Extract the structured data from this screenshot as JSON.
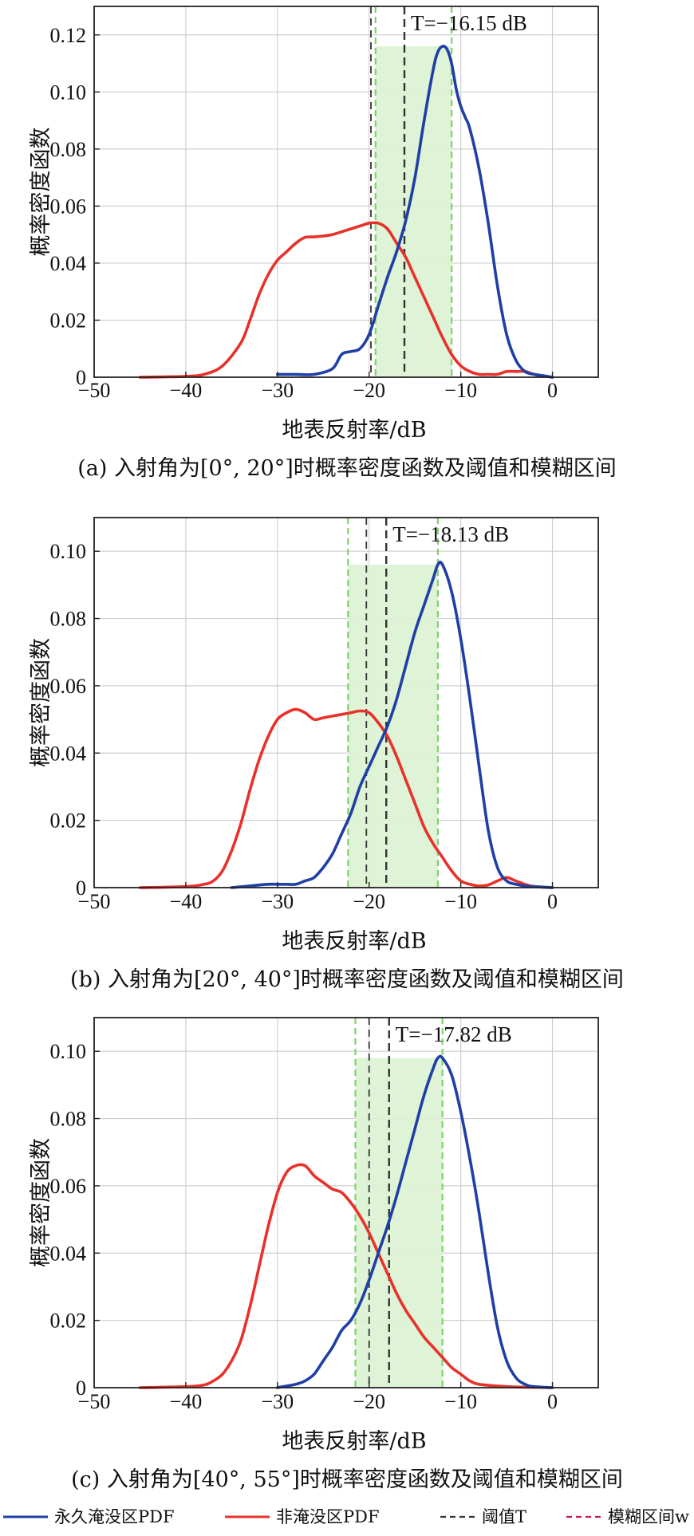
{
  "colors": {
    "permanent": "#1f3fa6",
    "nonflood": "#e8312a",
    "threshold": "#333333",
    "fuzzy_edge": "#7ed36c",
    "fuzzy_fill": "#dcf2d3",
    "grid": "#cfcfcf",
    "fuzzy_interval_legend": "#c2185b"
  },
  "legend": {
    "items": [
      {
        "label": "永久淹没区PDF",
        "style": "solid",
        "color": "#1f3fa6"
      },
      {
        "label": "非淹没区PDF",
        "style": "solid",
        "color": "#e8312a"
      },
      {
        "label": "阈值T",
        "style": "dashed",
        "color": "#333333"
      },
      {
        "label": "模糊区间w",
        "style": "dashed",
        "color": "#c2185b"
      }
    ]
  },
  "chart_data": [
    {
      "type": "line",
      "caption": "(a) 入射角为[0°, 20°]时概率密度函数及阈值和模糊区间",
      "xlabel": "地表反射率/dB",
      "ylabel": "概率密度函数",
      "xlim": [
        -50,
        5
      ],
      "ylim": [
        0,
        0.13
      ],
      "xticks": [
        -50,
        -40,
        -30,
        -20,
        -10,
        0
      ],
      "xtick_labels": [
        "−50",
        "−40",
        "−30",
        "−20",
        "−10",
        "0"
      ],
      "yticks": [
        0,
        0.02,
        0.04,
        0.06,
        0.08,
        0.1,
        0.12
      ],
      "ytick_labels": [
        "0",
        "0.02",
        "0.04",
        "0.06",
        "0.08",
        "0.10",
        "0.12"
      ],
      "grid": true,
      "threshold": -16.15,
      "threshold_label": "T=−16.15 dB",
      "fuzzy_interval": [
        -19.3,
        -11.0
      ],
      "fuzzy_height": 0.116,
      "extra_dashed_x": -19.8,
      "series": [
        {
          "name": "永久淹没区PDF",
          "x": [
            -30,
            -28,
            -26,
            -24,
            -23,
            -22,
            -21,
            -20,
            -19,
            -18,
            -17,
            -16,
            -15,
            -14,
            -13,
            -12.5,
            -12,
            -11.5,
            -11,
            -10.5,
            -10,
            -9.5,
            -9,
            -8,
            -7,
            -6,
            -5,
            -4,
            -3,
            -2,
            -1,
            0
          ],
          "y": [
            0.001,
            0.001,
            0.001,
            0.003,
            0.008,
            0.009,
            0.01,
            0.015,
            0.025,
            0.035,
            0.044,
            0.055,
            0.07,
            0.09,
            0.108,
            0.114,
            0.116,
            0.115,
            0.11,
            0.101,
            0.095,
            0.091,
            0.087,
            0.073,
            0.054,
            0.032,
            0.015,
            0.006,
            0.002,
            0.001,
            0.0005,
            0
          ]
        },
        {
          "name": "非淹没区PDF",
          "x": [
            -45,
            -40,
            -38,
            -36,
            -34,
            -33,
            -32,
            -31,
            -30,
            -29,
            -28,
            -27,
            -26,
            -25,
            -24,
            -23,
            -22,
            -21,
            -20,
            -19,
            -18,
            -17,
            -16,
            -15,
            -14,
            -13,
            -12,
            -11,
            -10,
            -9,
            -8,
            -7,
            -6,
            -5,
            -4,
            -3,
            -2,
            -1,
            0
          ],
          "y": [
            0,
            0.0003,
            0.001,
            0.004,
            0.012,
            0.02,
            0.029,
            0.036,
            0.041,
            0.044,
            0.047,
            0.049,
            0.0492,
            0.0495,
            0.05,
            0.051,
            0.052,
            0.053,
            0.054,
            0.054,
            0.052,
            0.047,
            0.042,
            0.035,
            0.028,
            0.021,
            0.014,
            0.008,
            0.004,
            0.002,
            0.001,
            0.001,
            0.001,
            0.002,
            0.002,
            0.002,
            0.001,
            0.0005,
            0
          ]
        }
      ]
    },
    {
      "type": "line",
      "caption": "(b) 入射角为[20°, 40°]时概率密度函数及阈值和模糊区间",
      "xlabel": "地表反射率/dB",
      "ylabel": "概率密度函数",
      "xlim": [
        -50,
        5
      ],
      "ylim": [
        0,
        0.11
      ],
      "xticks": [
        -50,
        -40,
        -30,
        -20,
        -10,
        0
      ],
      "xtick_labels": [
        "−50",
        "−40",
        "−30",
        "−20",
        "−10",
        "0"
      ],
      "yticks": [
        0,
        0.02,
        0.04,
        0.06,
        0.08,
        0.1
      ],
      "ytick_labels": [
        "0",
        "0.02",
        "0.04",
        "0.06",
        "0.08",
        "0.10"
      ],
      "grid": true,
      "threshold": -18.13,
      "threshold_label": "T=−18.13 dB",
      "fuzzy_interval": [
        -22.3,
        -12.5
      ],
      "fuzzy_height": 0.096,
      "extra_dashed_x": -20.3,
      "series": [
        {
          "name": "永久淹没区PDF",
          "x": [
            -35,
            -33,
            -31,
            -30,
            -29,
            -28,
            -27,
            -26,
            -25,
            -24,
            -23,
            -22,
            -21,
            -20,
            -19,
            -18,
            -17,
            -16,
            -15,
            -14,
            -13,
            -12.5,
            -12,
            -11,
            -10,
            -9,
            -8,
            -7,
            -6,
            -5,
            -4,
            -3,
            -2,
            0
          ],
          "y": [
            0,
            0.0005,
            0.001,
            0.001,
            0.001,
            0.001,
            0.002,
            0.003,
            0.006,
            0.01,
            0.016,
            0.022,
            0.03,
            0.036,
            0.042,
            0.048,
            0.056,
            0.066,
            0.076,
            0.084,
            0.092,
            0.096,
            0.096,
            0.088,
            0.074,
            0.056,
            0.036,
            0.017,
            0.006,
            0.002,
            0.001,
            0.0005,
            0.0003,
            0
          ]
        },
        {
          "name": "非淹没区PDF",
          "x": [
            -45,
            -40,
            -38,
            -37,
            -36,
            -35,
            -34,
            -33,
            -32,
            -31,
            -30,
            -29,
            -28,
            -27,
            -26,
            -25,
            -24,
            -23,
            -22,
            -21,
            -20,
            -19,
            -18,
            -17,
            -16,
            -15,
            -14,
            -13,
            -12,
            -11,
            -10,
            -9,
            -8,
            -7,
            -6,
            -5,
            -4,
            -3,
            -2,
            0
          ],
          "y": [
            0,
            0.0003,
            0.001,
            0.002,
            0.005,
            0.011,
            0.019,
            0.029,
            0.038,
            0.045,
            0.05,
            0.052,
            0.053,
            0.052,
            0.05,
            0.0505,
            0.051,
            0.0515,
            0.052,
            0.0525,
            0.052,
            0.049,
            0.045,
            0.039,
            0.032,
            0.025,
            0.018,
            0.013,
            0.009,
            0.005,
            0.002,
            0.001,
            0.0005,
            0.0008,
            0.002,
            0.003,
            0.002,
            0.001,
            0.0003,
            0
          ]
        }
      ]
    },
    {
      "type": "line",
      "caption": "(c) 入射角为[40°, 55°]时概率密度函数及阈值和模糊区间",
      "xlabel": "地表反射率/dB",
      "ylabel": "概率密度函数",
      "xlim": [
        -50,
        5
      ],
      "ylim": [
        0,
        0.11
      ],
      "xticks": [
        -50,
        -40,
        -30,
        -20,
        -10,
        0
      ],
      "xtick_labels": [
        "−50",
        "−40",
        "−30",
        "−20",
        "−10",
        "0"
      ],
      "yticks": [
        0,
        0.02,
        0.04,
        0.06,
        0.08,
        0.1
      ],
      "ytick_labels": [
        "0",
        "0.02",
        "0.04",
        "0.06",
        "0.08",
        "0.10"
      ],
      "grid": true,
      "threshold": -17.82,
      "threshold_label": "T=−17.82 dB",
      "fuzzy_interval": [
        -21.5,
        -12.0
      ],
      "fuzzy_height": 0.098,
      "extra_dashed_x": -20.0,
      "series": [
        {
          "name": "永久淹没区PDF",
          "x": [
            -30,
            -28,
            -27,
            -26,
            -25,
            -24,
            -23,
            -22,
            -21,
            -20,
            -19,
            -18,
            -17,
            -16,
            -15,
            -14,
            -13,
            -12.5,
            -12,
            -11,
            -10,
            -9,
            -8,
            -7,
            -6,
            -5,
            -4,
            -3,
            -2,
            0
          ],
          "y": [
            0,
            0.001,
            0.002,
            0.004,
            0.008,
            0.012,
            0.017,
            0.02,
            0.025,
            0.032,
            0.04,
            0.048,
            0.057,
            0.067,
            0.077,
            0.087,
            0.095,
            0.098,
            0.098,
            0.093,
            0.082,
            0.068,
            0.052,
            0.034,
            0.018,
            0.008,
            0.003,
            0.001,
            0.0003,
            0
          ]
        },
        {
          "name": "非淹没区PDF",
          "x": [
            -45,
            -40,
            -38,
            -37,
            -36,
            -35,
            -34,
            -33,
            -32,
            -31,
            -30,
            -29,
            -28,
            -27,
            -26,
            -25,
            -24,
            -23,
            -22,
            -21,
            -20,
            -19,
            -18,
            -17,
            -16,
            -15,
            -14,
            -13,
            -12,
            -11,
            -10,
            -9,
            -8,
            -6,
            -4,
            -2,
            0
          ],
          "y": [
            0,
            0.0003,
            0.0008,
            0.002,
            0.004,
            0.008,
            0.014,
            0.024,
            0.036,
            0.048,
            0.058,
            0.064,
            0.066,
            0.066,
            0.063,
            0.061,
            0.059,
            0.058,
            0.055,
            0.051,
            0.046,
            0.04,
            0.034,
            0.028,
            0.023,
            0.019,
            0.015,
            0.012,
            0.009,
            0.006,
            0.004,
            0.002,
            0.001,
            0.0005,
            0.0002,
            0.0001,
            0
          ]
        }
      ]
    }
  ]
}
